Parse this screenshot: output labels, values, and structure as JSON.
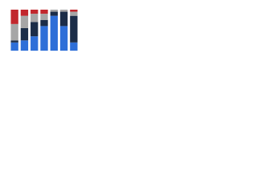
{
  "chart_data": {
    "type": "stacked_bar",
    "categories": [
      null,
      null,
      null,
      null,
      null,
      null,
      null
    ],
    "series": [
      {
        "color": "#2e6fd8",
        "values": [
          20,
          25,
          35,
          60,
          85,
          60,
          20
        ]
      },
      {
        "color": "#1b2d48",
        "values": [
          5,
          30,
          35,
          15,
          10,
          35,
          65
        ]
      },
      {
        "color": "#a6a6a6",
        "values": [
          40,
          30,
          20,
          15,
          5,
          5,
          10
        ]
      },
      {
        "color": "#c1272d",
        "values": [
          35,
          15,
          10,
          10,
          0,
          0,
          5
        ]
      }
    ],
    "ylim": [
      0,
      100
    ]
  }
}
